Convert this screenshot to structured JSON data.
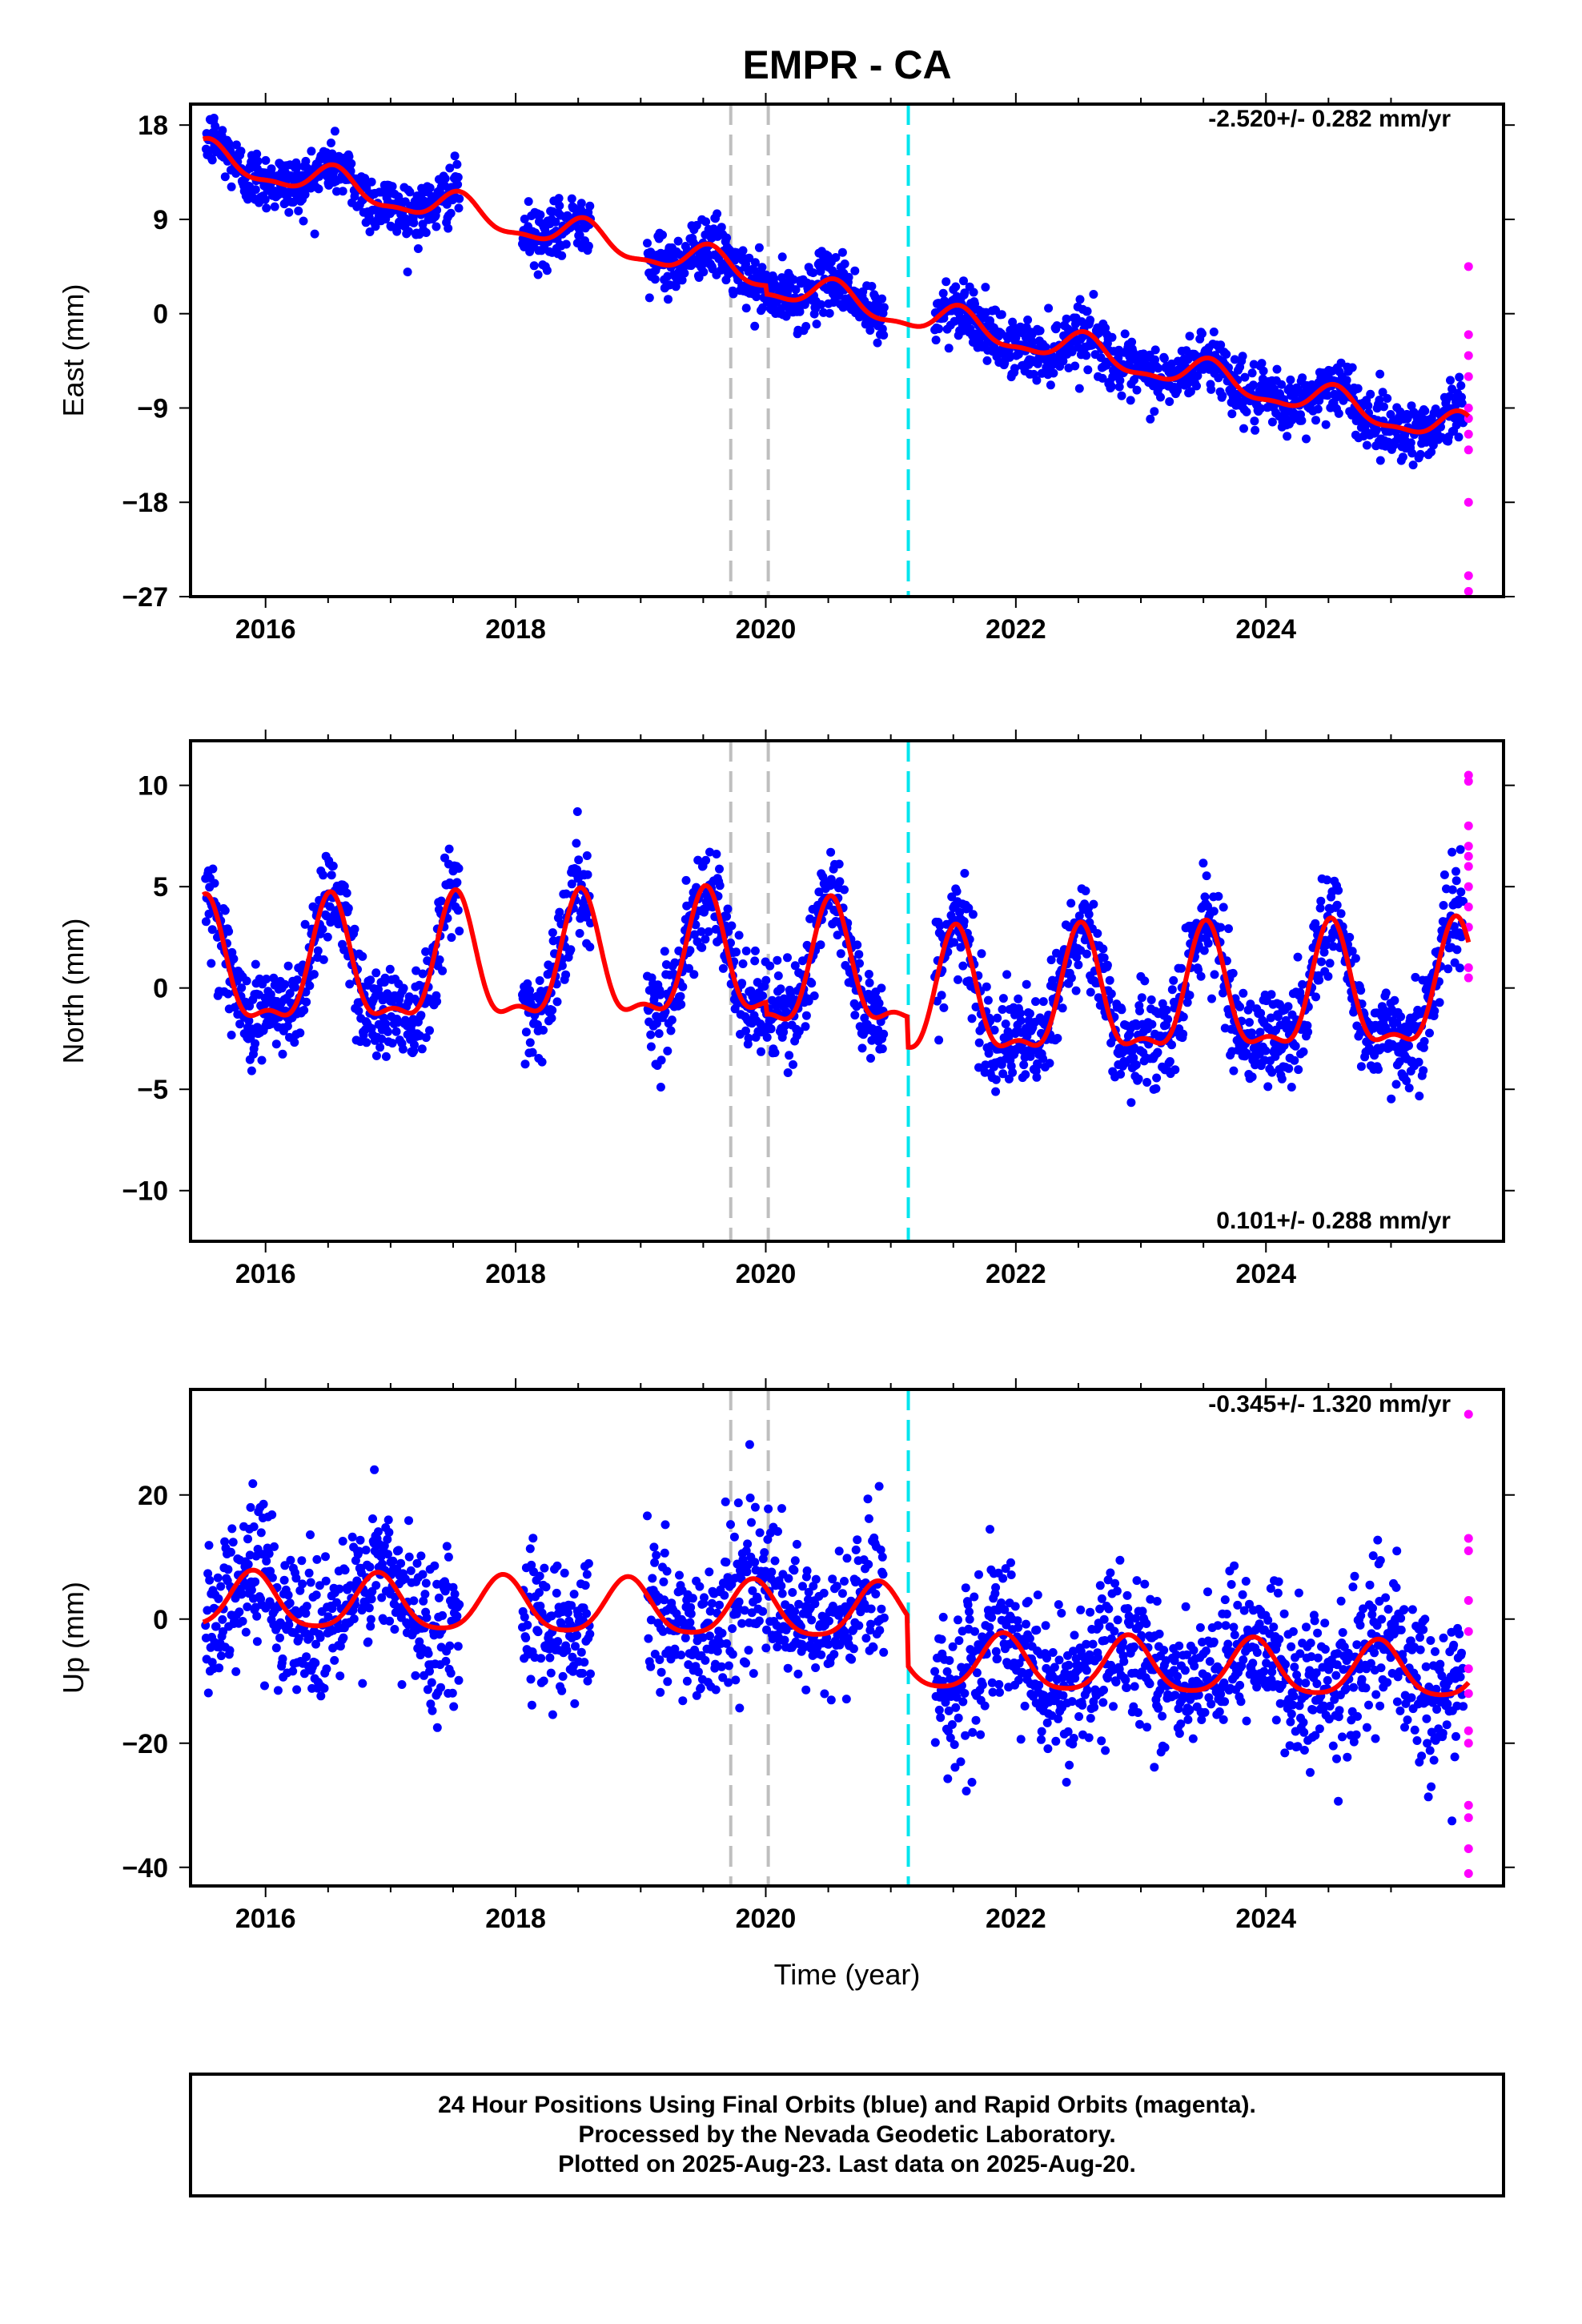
{
  "title": "EMPR - CA",
  "xlabel": "Time (year)",
  "footer": {
    "line1": "24 Hour Positions Using Final Orbits (blue) and Rapid Orbits (magenta).",
    "line2": "Processed by the Nevada Geodetic Laboratory.",
    "line3": "Plotted on 2025-Aug-23. Last data on 2025-Aug-20."
  },
  "colors": {
    "final_points": "#0000ff",
    "rapid_points": "#ff00ff",
    "model": "#ff0000",
    "equipment_change": "#bfbfbf",
    "earthquake": "#00e5ee"
  },
  "chart_data": [
    {
      "type": "scatter",
      "title": "EMPR - CA",
      "ylabel": "East (mm)",
      "rate_label": "-2.520+/- 0.282 mm/yr",
      "rate_position": "top-right",
      "xlim": [
        2015.4,
        2025.9
      ],
      "ylim": [
        -27,
        20
      ],
      "xticks": [
        "2016",
        "2018",
        "2020",
        "2022",
        "2024"
      ],
      "yticks": [
        "18",
        "9",
        "0",
        "-9",
        "-18",
        "-27"
      ],
      "model": {
        "rate": -2.52,
        "intercept_2015": 16.2,
        "annual_amp": 1.4,
        "annual_phase": 0.55,
        "semiannual_amp": 0.5,
        "offsets": [
          {
            "year": 2020.0,
            "size": -0.8
          },
          {
            "year": 2021.13,
            "size": 0.0
          }
        ]
      },
      "scatter_sigma": 1.4,
      "data_gaps": [
        [
          2017.55,
          2018.05
        ],
        [
          2018.6,
          2019.05
        ],
        [
          2020.95,
          2021.35
        ]
      ],
      "rapid_values": [
        4.5,
        -2.0,
        -4.0,
        -6.0,
        -9.0,
        -10.0,
        -11.5,
        -13.0,
        -18.0,
        -25.0,
        -26.5
      ]
    },
    {
      "type": "scatter",
      "ylabel": "North (mm)",
      "rate_label": "0.101+/- 0.288 mm/yr",
      "rate_position": "bottom-right",
      "xlim": [
        2015.4,
        2025.9
      ],
      "ylim": [
        -12.5,
        12.2
      ],
      "xticks": [
        "2016",
        "2018",
        "2020",
        "2022",
        "2024"
      ],
      "yticks": [
        "10",
        "5",
        "0",
        "-5",
        "-10"
      ],
      "model": {
        "rate": 0.101,
        "intercept_2015": 0.6,
        "annual_amp": 2.9,
        "annual_phase": 0.52,
        "semiannual_amp": 1.1,
        "offsets": [
          {
            "year": 2020.0,
            "size": -0.6
          },
          {
            "year": 2021.13,
            "size": -1.5
          }
        ]
      },
      "scatter_sigma": 1.2,
      "data_gaps": [
        [
          2017.55,
          2018.05
        ],
        [
          2018.6,
          2019.05
        ],
        [
          2020.95,
          2021.35
        ]
      ],
      "rapid_values": [
        10.5,
        10.2,
        8.0,
        7.0,
        6.5,
        6.0,
        5.0,
        4.0,
        3.0,
        1.0,
        0.5
      ]
    },
    {
      "type": "scatter",
      "ylabel": "Up (mm)",
      "rate_label": "-0.345+/- 1.320 mm/yr",
      "rate_position": "top-right",
      "xlim": [
        2015.4,
        2025.9
      ],
      "ylim": [
        -43,
        37
      ],
      "xticks": [
        "2016",
        "2018",
        "2020",
        "2022",
        "2024"
      ],
      "yticks": [
        "20",
        "0",
        "-20",
        "-40"
      ],
      "model": {
        "rate": -0.345,
        "intercept_2015": 3.0,
        "annual_amp": 4.4,
        "annual_phase": 0.9,
        "semiannual_amp": 0.8,
        "offsets": [
          {
            "year": 2021.13,
            "size": -8.0
          }
        ]
      },
      "scatter_sigma": 6.0,
      "data_gaps": [
        [
          2017.55,
          2018.05
        ],
        [
          2018.6,
          2019.05
        ],
        [
          2020.95,
          2021.35
        ]
      ],
      "rapid_values": [
        33.0,
        13.0,
        11.0,
        3.0,
        -2.0,
        -8.0,
        -12.0,
        -18.0,
        -20.0,
        -30.0,
        -32.0,
        -37.0,
        -41.0
      ]
    }
  ],
  "vertical_lines": [
    {
      "year": 2019.72,
      "kind": "equipment_change"
    },
    {
      "year": 2020.02,
      "kind": "equipment_change"
    },
    {
      "year": 2021.14,
      "kind": "earthquake"
    }
  ]
}
